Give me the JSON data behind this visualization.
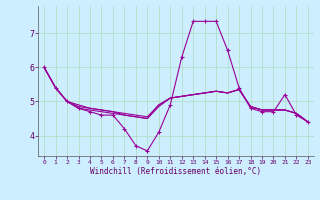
{
  "xlabel": "Windchill (Refroidissement éolien,°C)",
  "background_color": "#cceeff",
  "grid_color": "#aaddbb",
  "line_color": "#990099",
  "xlim": [
    -0.5,
    23.5
  ],
  "ylim": [
    3.4,
    7.8
  ],
  "yticks": [
    4,
    5,
    6,
    7
  ],
  "xticks": [
    0,
    1,
    2,
    3,
    4,
    5,
    6,
    7,
    8,
    9,
    10,
    11,
    12,
    13,
    14,
    15,
    16,
    17,
    18,
    19,
    20,
    21,
    22,
    23
  ],
  "series": [
    {
      "y": [
        6.0,
        5.4,
        5.0,
        4.8,
        4.75,
        4.7,
        4.65,
        4.6,
        4.55,
        4.5,
        4.85,
        5.1,
        5.15,
        5.2,
        5.25,
        5.3,
        5.25,
        5.35,
        4.85,
        4.75,
        4.75,
        4.75,
        4.65,
        4.4
      ],
      "marker": false
    },
    {
      "y": [
        6.0,
        5.4,
        5.0,
        4.85,
        4.8,
        4.75,
        4.7,
        4.65,
        4.6,
        4.55,
        4.9,
        5.1,
        5.15,
        5.2,
        5.25,
        5.3,
        5.25,
        5.35,
        4.85,
        4.75,
        4.75,
        4.75,
        4.65,
        4.4
      ],
      "marker": false
    },
    {
      "y": [
        6.0,
        5.4,
        5.0,
        4.9,
        4.8,
        4.75,
        4.7,
        4.6,
        4.55,
        4.5,
        4.9,
        5.1,
        5.15,
        5.2,
        5.25,
        5.3,
        5.25,
        5.35,
        4.85,
        4.75,
        4.75,
        4.75,
        4.65,
        4.4
      ],
      "marker": false
    },
    {
      "y": [
        6.0,
        5.4,
        5.0,
        4.8,
        4.7,
        4.6,
        4.6,
        4.2,
        3.7,
        3.55,
        4.1,
        4.9,
        6.3,
        7.35,
        7.35,
        7.35,
        6.5,
        5.4,
        4.8,
        4.7,
        4.7,
        5.2,
        4.6,
        4.4
      ],
      "marker": true
    }
  ]
}
